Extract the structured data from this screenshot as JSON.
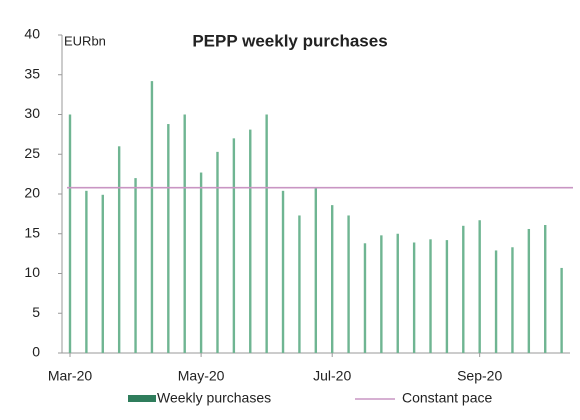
{
  "chart_data": {
    "type": "bar",
    "title": "PEPP weekly purchases",
    "y_label": "EURbn",
    "categories": [
      "Mar-20",
      null,
      null,
      null,
      null,
      null,
      null,
      null,
      "May-20",
      null,
      null,
      null,
      null,
      null,
      null,
      null,
      "Jul-20",
      null,
      null,
      null,
      null,
      null,
      null,
      null,
      null,
      "Sep-20",
      null,
      null,
      null,
      null,
      null
    ],
    "series": [
      {
        "name": "Weekly purchases",
        "color": "#6fb592",
        "legend_color": "#2f7d5c",
        "values": [
          30,
          20.4,
          19.9,
          26,
          22,
          34.2,
          28.8,
          30,
          22.7,
          25.3,
          27,
          28.1,
          30,
          20.4,
          17.3,
          20.7,
          18.6,
          17.3,
          13.8,
          14.8,
          15,
          13.9,
          14.3,
          14.2,
          16,
          16.7,
          12.9,
          13.3,
          15.6,
          16.1,
          10.7
        ]
      }
    ],
    "reference_line": {
      "name": "Constant pace",
      "value": 20.8,
      "color": "#c995c3"
    },
    "ylim": [
      0,
      40
    ],
    "yticks": [
      0,
      5,
      10,
      15,
      20,
      25,
      30,
      35,
      40
    ],
    "grid": false
  }
}
